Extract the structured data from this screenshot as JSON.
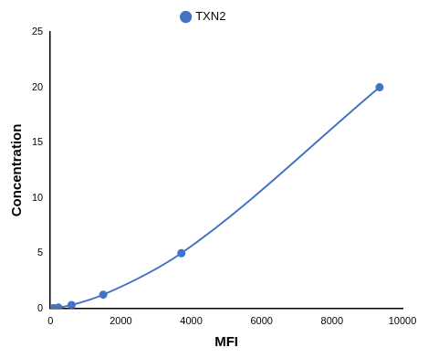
{
  "chart_data": {
    "type": "line",
    "x_label": "MFI",
    "y_label": "Concentration",
    "x": [
      40,
      110,
      230,
      600,
      1500,
      3720,
      9350
    ],
    "series": [
      {
        "name": "TXN2",
        "color": "#4472c4",
        "values": [
          0,
          0.02,
          0.08,
          0.31,
          1.25,
          5,
          20
        ],
        "marker": "circle",
        "line_style": "solid"
      }
    ],
    "xlim": [
      0,
      10000
    ],
    "xticks": [
      0,
      2000,
      4000,
      6000,
      8000,
      10000
    ],
    "ylim": [
      0,
      25
    ],
    "yticks": [
      0,
      5,
      10,
      15,
      20,
      25
    ],
    "grid": false,
    "legend": "top"
  }
}
